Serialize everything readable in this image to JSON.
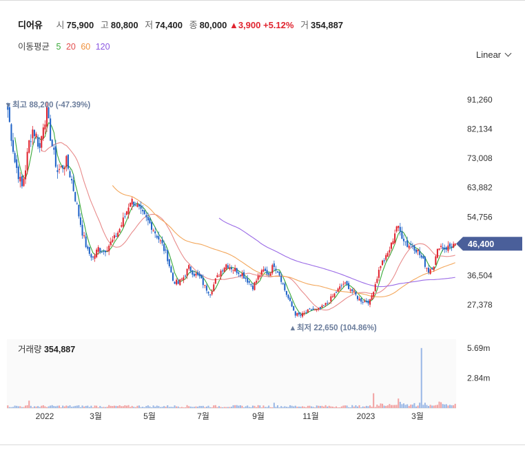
{
  "header": {
    "name": "디어유",
    "open_label": "시",
    "open": "75,900",
    "high_label": "고",
    "high": "80,800",
    "low_label": "저",
    "low": "74,400",
    "close_label": "종",
    "close": "80,000",
    "change": "▲3,900",
    "change_pct": "+5.12%",
    "volume_label": "거",
    "volume": "354,887"
  },
  "ma_legend": {
    "title": "이동평균",
    "periods": [
      {
        "label": "5",
        "color": "#38a838"
      },
      {
        "label": "20",
        "color": "#e34d4d"
      },
      {
        "label": "60",
        "color": "#f0913c"
      },
      {
        "label": "120",
        "color": "#8a56e2"
      }
    ]
  },
  "scale_selector": {
    "label": "Linear"
  },
  "chart_data": {
    "type": "candlestick",
    "price_axis_ticks": [
      "91,260",
      "82,134",
      "73,008",
      "63,882",
      "54,756",
      "36,504",
      "27,378"
    ],
    "price_axis_values": [
      91260,
      82134,
      73008,
      63882,
      54756,
      36504,
      27378
    ],
    "x_axis_ticks": [
      "2022",
      "3월",
      "5월",
      "7월",
      "9월",
      "11월",
      "2023",
      "3월"
    ],
    "current_price_label": "46,400",
    "current_price": 46400,
    "max_annotation": "최고 88,200 (-47.39%)",
    "min_annotation": "최저 22,650 (104.86%)",
    "volume_title": "거래량",
    "volume_value": "354,887",
    "volume_axis_ticks": [
      "5.69m",
      "2.84m"
    ],
    "up_color": "#e0242f",
    "down_color": "#1f63c8",
    "price_path": [
      [
        0,
        88200
      ],
      [
        2,
        80000
      ],
      [
        4,
        72000
      ],
      [
        6,
        68000
      ],
      [
        8,
        64000
      ],
      [
        10,
        70000
      ],
      [
        12,
        78000
      ],
      [
        14,
        82000
      ],
      [
        16,
        80000
      ],
      [
        18,
        76000
      ],
      [
        20,
        84000
      ],
      [
        22,
        87000
      ],
      [
        24,
        80000
      ],
      [
        26,
        74000
      ],
      [
        28,
        69000
      ],
      [
        30,
        70000
      ],
      [
        33,
        72000
      ],
      [
        36,
        66000
      ],
      [
        39,
        58000
      ],
      [
        42,
        50000
      ],
      [
        45,
        44000
      ],
      [
        48,
        42000
      ],
      [
        51,
        45000
      ],
      [
        54,
        44000
      ],
      [
        57,
        46000
      ],
      [
        60,
        48000
      ],
      [
        63,
        51000
      ],
      [
        66,
        55000
      ],
      [
        69,
        60000
      ],
      [
        72,
        59000
      ],
      [
        75,
        56000
      ],
      [
        78,
        54000
      ],
      [
        81,
        52000
      ],
      [
        84,
        49000
      ],
      [
        87,
        46000
      ],
      [
        90,
        42000
      ],
      [
        93,
        35000
      ],
      [
        96,
        34000
      ],
      [
        99,
        36000
      ],
      [
        102,
        39000
      ],
      [
        105,
        37000
      ],
      [
        108,
        36000
      ],
      [
        111,
        33000
      ],
      [
        114,
        31000
      ],
      [
        117,
        35000
      ],
      [
        120,
        38000
      ],
      [
        123,
        40000
      ],
      [
        126,
        39000
      ],
      [
        129,
        38000
      ],
      [
        132,
        37000
      ],
      [
        135,
        35000
      ],
      [
        138,
        33000
      ],
      [
        141,
        36000
      ],
      [
        144,
        38000
      ],
      [
        147,
        37000
      ],
      [
        150,
        40000
      ],
      [
        153,
        37000
      ],
      [
        156,
        32000
      ],
      [
        159,
        28000
      ],
      [
        162,
        24500
      ],
      [
        165,
        24000
      ],
      [
        168,
        25000
      ],
      [
        171,
        26000
      ],
      [
        174,
        25500
      ],
      [
        177,
        26500
      ],
      [
        180,
        28000
      ],
      [
        183,
        30000
      ],
      [
        186,
        32000
      ],
      [
        189,
        34000
      ],
      [
        192,
        33000
      ],
      [
        195,
        31000
      ],
      [
        198,
        29000
      ],
      [
        201,
        28500
      ],
      [
        204,
        28500
      ],
      [
        207,
        34000
      ],
      [
        210,
        40000
      ],
      [
        213,
        42000
      ],
      [
        216,
        46000
      ],
      [
        219,
        52000
      ],
      [
        222,
        49000
      ],
      [
        225,
        46000
      ],
      [
        228,
        46000
      ],
      [
        231,
        44000
      ],
      [
        234,
        41000
      ],
      [
        237,
        38000
      ],
      [
        240,
        40000
      ],
      [
        243,
        46000
      ],
      [
        246,
        45000
      ],
      [
        249,
        45500
      ],
      [
        252,
        46400
      ]
    ],
    "volume_spikes": [
      [
        233,
        5690000
      ],
      [
        206,
        1400000
      ],
      [
        220,
        900000
      ],
      [
        12,
        700000
      ],
      [
        150,
        500000
      ],
      [
        244,
        550000
      ]
    ]
  }
}
